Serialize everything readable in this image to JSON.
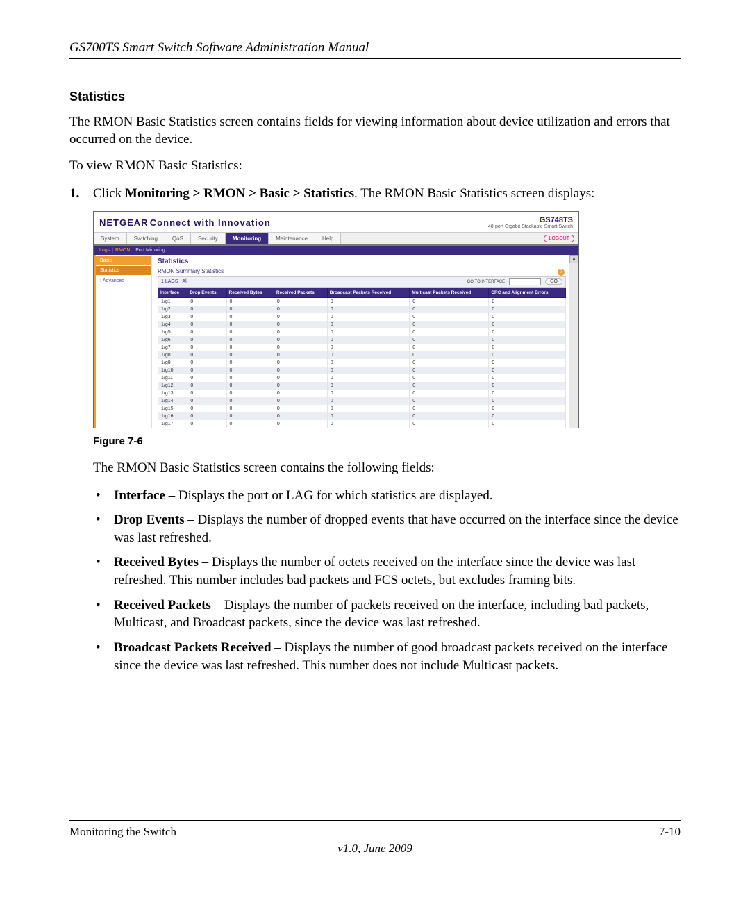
{
  "doc": {
    "header": "GS700TS Smart Switch Software Administration Manual",
    "section_title": "Statistics",
    "intro": "The RMON Basic Statistics screen contains fields for viewing information about device utilization and errors that occurred on the device.",
    "lead": "To view RMON Basic Statistics:",
    "step_prefix": "Click ",
    "step_bold": "Monitoring > RMON > Basic > Statistics",
    "step_suffix": ". The RMON Basic Statistics screen displays:",
    "figure_caption": "Figure 7-6",
    "after_fig": "The RMON Basic Statistics screen contains the following fields:",
    "fields": [
      {
        "term": "Interface",
        "desc": " – Displays the port or LAG for which statistics are displayed."
      },
      {
        "term": "Drop Events",
        "desc": " – Displays the number of dropped events that have occurred on the interface since the device was last refreshed."
      },
      {
        "term": "Received Bytes",
        "desc": " – Displays the number of octets received on the interface since the device was last refreshed. This number includes bad packets and FCS octets, but excludes framing bits."
      },
      {
        "term": "Received Packets",
        "desc": " – Displays the number of packets received on the interface, including bad packets, Multicast, and Broadcast packets, since the device was last refreshed."
      },
      {
        "term": "Broadcast Packets Received",
        "desc": " – Displays the number of good broadcast packets received on the interface since the device was last refreshed. This number does not include Multicast packets."
      }
    ],
    "footer_left": "Monitoring the Switch",
    "footer_right": "7-10",
    "footer_version": "v1.0, June 2009"
  },
  "ui": {
    "brand": "NETGEAR",
    "brand_sub": "Connect with Innovation",
    "model": "GS748TS",
    "model_desc": "48-port Gigabit Stackable Smart Switch",
    "menu": [
      "System",
      "Switching",
      "QoS",
      "Security",
      "Monitoring",
      "Maintenance",
      "Help"
    ],
    "active_menu": "Monitoring",
    "logout": "LOGOUT",
    "submenu": {
      "a": "Logs",
      "b": "RMON",
      "c": "Port Mirroring"
    },
    "left_basic": "Basic",
    "left_stats": "Statistics",
    "left_adv": "Advanced",
    "panel_title": "Statistics",
    "panel_subtitle": "RMON Summary Statistics",
    "seg1": "1  LAGS",
    "seg_all": "All",
    "goto_label": "GO TO INTERFACE",
    "go_btn": "GO",
    "columns": [
      "Interface",
      "Drop Events",
      "Received Bytes",
      "Received Packets",
      "Broadcast Packets Received",
      "Multicast Packets Received",
      "CRC and Alignment Errors"
    ],
    "rows": [
      [
        "1/g1",
        "0",
        "0",
        "0",
        "0",
        "0",
        "0"
      ],
      [
        "1/g2",
        "0",
        "0",
        "0",
        "0",
        "0",
        "0"
      ],
      [
        "1/g3",
        "0",
        "0",
        "0",
        "0",
        "0",
        "0"
      ],
      [
        "1/g4",
        "0",
        "0",
        "0",
        "0",
        "0",
        "0"
      ],
      [
        "1/g5",
        "0",
        "0",
        "0",
        "0",
        "0",
        "0"
      ],
      [
        "1/g6",
        "0",
        "0",
        "0",
        "0",
        "0",
        "0"
      ],
      [
        "1/g7",
        "0",
        "0",
        "0",
        "0",
        "0",
        "0"
      ],
      [
        "1/g8",
        "0",
        "0",
        "0",
        "0",
        "0",
        "0"
      ],
      [
        "1/g9",
        "0",
        "0",
        "0",
        "0",
        "0",
        "0"
      ],
      [
        "1/g10",
        "0",
        "0",
        "0",
        "0",
        "0",
        "0"
      ],
      [
        "1/g11",
        "0",
        "0",
        "0",
        "0",
        "0",
        "0"
      ],
      [
        "1/g12",
        "0",
        "0",
        "0",
        "0",
        "0",
        "0"
      ],
      [
        "1/g13",
        "0",
        "0",
        "0",
        "0",
        "0",
        "0"
      ],
      [
        "1/g14",
        "0",
        "0",
        "0",
        "0",
        "0",
        "0"
      ],
      [
        "1/g15",
        "0",
        "0",
        "0",
        "0",
        "0",
        "0"
      ],
      [
        "1/g16",
        "0",
        "0",
        "0",
        "0",
        "0",
        "0"
      ],
      [
        "1/g17",
        "0",
        "0",
        "0",
        "0",
        "0",
        "0"
      ]
    ]
  }
}
